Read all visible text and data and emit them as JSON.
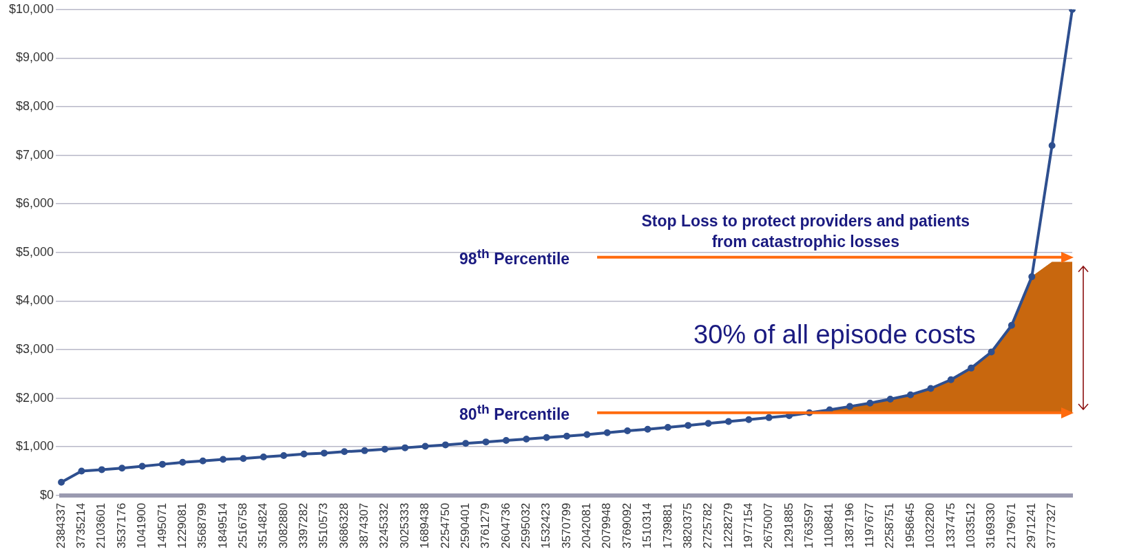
{
  "chart_data": {
    "type": "line",
    "categories": [
      "2384337",
      "3735214",
      "2103601",
      "3537176",
      "1041900",
      "1495071",
      "1229081",
      "3568799",
      "1849514",
      "2516758",
      "3514824",
      "3082880",
      "3397282",
      "3510573",
      "3686328",
      "3874307",
      "3245332",
      "3025333",
      "1689438",
      "2254750",
      "2590401",
      "3761279",
      "2604736",
      "2595032",
      "1532423",
      "3570799",
      "2042081",
      "2079948",
      "3769092",
      "1510314",
      "1739881",
      "3820375",
      "2725782",
      "1228279",
      "1977154",
      "2675007",
      "1291885",
      "1763597",
      "1108841",
      "1387196",
      "1197677",
      "2258751",
      "1958645",
      "1032280",
      "1337475",
      "1033512",
      "3169330",
      "2179671",
      "2971241",
      "3777327",
      null
    ],
    "series": [
      {
        "color": "#2e4f8f",
        "marker": "circle",
        "values": [
          270,
          500,
          530,
          560,
          600,
          640,
          680,
          710,
          740,
          760,
          790,
          820,
          850,
          870,
          900,
          920,
          950,
          980,
          1010,
          1040,
          1070,
          1100,
          1130,
          1160,
          1190,
          1220,
          1250,
          1290,
          1330,
          1360,
          1400,
          1440,
          1480,
          1520,
          1560,
          1600,
          1640,
          1700,
          1760,
          1830,
          1900,
          1980,
          2070,
          2200,
          2380,
          2620,
          2950,
          3500,
          4500,
          7200,
          10000
        ]
      },
      {
        "type": "area",
        "color": "#c8670e",
        "values": [
          null,
          null,
          null,
          null,
          null,
          null,
          null,
          null,
          null,
          null,
          null,
          null,
          null,
          null,
          null,
          null,
          null,
          null,
          null,
          null,
          null,
          null,
          null,
          null,
          null,
          null,
          null,
          null,
          null,
          null,
          null,
          null,
          null,
          null,
          null,
          null,
          null,
          1700,
          1760,
          1830,
          1900,
          1980,
          2070,
          2200,
          2380,
          2620,
          2950,
          3500,
          4500,
          4800,
          4800
        ]
      }
    ],
    "ylim": [
      0,
      10000
    ],
    "yticks": [
      {
        "value": 0,
        "label": "$0"
      },
      {
        "value": 1000,
        "label": "$1,000"
      },
      {
        "value": 2000,
        "label": "$2,000"
      },
      {
        "value": 3000,
        "label": "$3,000"
      },
      {
        "value": 4000,
        "label": "$4,000"
      },
      {
        "value": 5000,
        "label": "$5,000"
      },
      {
        "value": 6000,
        "label": "$6,000"
      },
      {
        "value": 7000,
        "label": "$7,000"
      },
      {
        "value": 8000,
        "label": "$8,000"
      },
      {
        "value": 9000,
        "label": "$9,000"
      },
      {
        "value": 10000,
        "label": "$10,000"
      }
    ],
    "grid": "y",
    "legend": false,
    "ref_lines": [
      {
        "axis": "y",
        "value": 4900,
        "label": "98$^{th}$ Percentile",
        "color": "#ff6a0d"
      },
      {
        "axis": "y",
        "value": 1700,
        "label": "80$^{th}$ Percentile",
        "color": "#ff6a0d"
      }
    ],
    "annotations": [
      "Stop Loss to protect providers and patients from catastrophic losses",
      "30% of all episode costs"
    ]
  }
}
